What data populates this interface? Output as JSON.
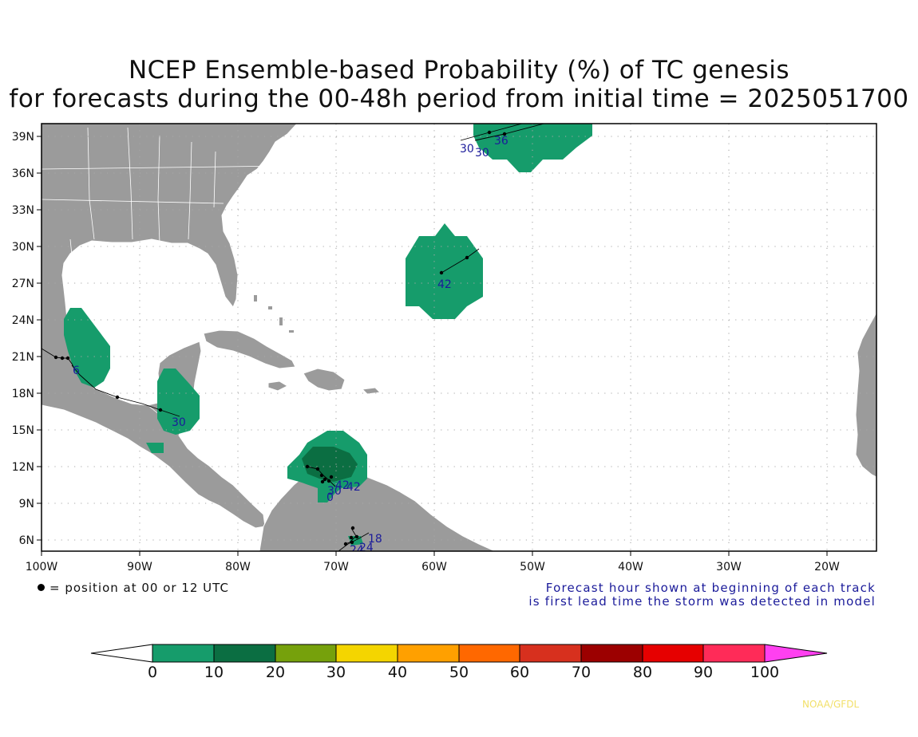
{
  "title": {
    "line1": "NCEP Ensemble-based Probability (%) of TC genesis",
    "line2": "for forecasts during the 00-48h period from initial time = 2025051700"
  },
  "map": {
    "lon_range": [
      -100,
      -15
    ],
    "lat_range": [
      5,
      40
    ],
    "lon_ticks": [
      "100W",
      "90W",
      "80W",
      "70W",
      "60W",
      "50W",
      "40W",
      "30W",
      "20W"
    ],
    "lat_ticks": [
      "6N",
      "9N",
      "12N",
      "15N",
      "18N",
      "21N",
      "24N",
      "27N",
      "30N",
      "33N",
      "36N",
      "39N"
    ],
    "grid": "dotted",
    "colors": {
      "land": "#9b9b9b",
      "ocean": "#ffffff",
      "coast": "#ffffff",
      "prob_0_10": "#169c6b",
      "prob_10_20": "#0b6e42"
    }
  },
  "genesis_regions": [
    {
      "name": "central-atlantic-north",
      "probability_bin": "0-10"
    },
    {
      "name": "central-atlantic",
      "probability_bin": "0-10"
    },
    {
      "name": "gulf-of-mexico-west",
      "probability_bin": "0-10"
    },
    {
      "name": "yucatan",
      "probability_bin": "0-10"
    },
    {
      "name": "southern-caribbean",
      "probability_bin": "0-10"
    },
    {
      "name": "southern-caribbean-core",
      "probability_bin": "10-20"
    }
  ],
  "track_labels": [
    "36",
    "30",
    "30",
    "42",
    "6",
    "30",
    "42",
    "42",
    "30",
    "0",
    "18",
    "24",
    "24"
  ],
  "legend": {
    "dot_note": "= position at 00 or 12 UTC",
    "forecast_note_line1": "Forecast hour shown at beginning of each track",
    "forecast_note_line2": "is first lead time the storm was detected in model"
  },
  "colorbar": {
    "labels": [
      "0",
      "10",
      "20",
      "30",
      "40",
      "50",
      "60",
      "70",
      "80",
      "90",
      "100"
    ],
    "colors": [
      "#ffffff",
      "#169c6b",
      "#0b6e42",
      "#76a10c",
      "#f4d500",
      "#ffa000",
      "#ff6800",
      "#d7301e",
      "#9c0000",
      "#e60000",
      "#ff2b58",
      "#ff40f0"
    ]
  },
  "credit": "NOAA/GFDL"
}
